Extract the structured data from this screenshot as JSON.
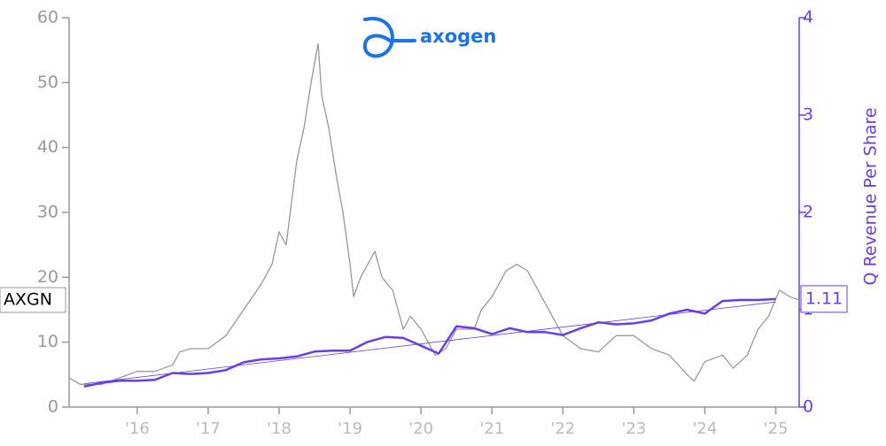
{
  "chart_data": {
    "type": "line",
    "logo_text": "axogen",
    "y2_label": "Q Revenue Per Share",
    "xlim": [
      2015.04,
      2025.33
    ],
    "xticks": [
      {
        "value": 2016,
        "label": "'16"
      },
      {
        "value": 2017,
        "label": "'17"
      },
      {
        "value": 2018,
        "label": "'18"
      },
      {
        "value": 2019,
        "label": "'19"
      },
      {
        "value": 2020,
        "label": "'20"
      },
      {
        "value": 2021,
        "label": "'21"
      },
      {
        "value": 2022,
        "label": "'22"
      },
      {
        "value": 2023,
        "label": "'23"
      },
      {
        "value": 2024,
        "label": "'24"
      },
      {
        "value": 2025,
        "label": "'25"
      }
    ],
    "ylim": [
      0,
      60
    ],
    "yticks": [
      0,
      10,
      20,
      30,
      40,
      50,
      60
    ],
    "y2lim": [
      0,
      4
    ],
    "y2ticks": [
      0,
      1,
      2,
      3,
      4
    ],
    "series": [
      {
        "name": "AXGN",
        "color": "#999999",
        "x": [
          2015.04,
          2015.2,
          2015.5,
          2015.75,
          2016.0,
          2016.25,
          2016.5,
          2016.6,
          2016.75,
          2017.0,
          2017.25,
          2017.5,
          2017.75,
          2017.9,
          2018.0,
          2018.1,
          2018.25,
          2018.35,
          2018.45,
          2018.55,
          2018.6,
          2018.7,
          2018.8,
          2018.9,
          2019.0,
          2019.05,
          2019.15,
          2019.35,
          2019.45,
          2019.6,
          2019.75,
          2019.85,
          2020.0,
          2020.2,
          2020.35,
          2020.5,
          2020.75,
          2020.85,
          2021.0,
          2021.2,
          2021.35,
          2021.5,
          2021.7,
          2021.85,
          2022.0,
          2022.25,
          2022.5,
          2022.75,
          2023.0,
          2023.25,
          2023.5,
          2023.75,
          2023.85,
          2024.0,
          2024.25,
          2024.4,
          2024.6,
          2024.75,
          2024.9,
          2025.05,
          2025.2,
          2025.33
        ],
        "values": [
          4.5,
          3.5,
          3.5,
          4.5,
          5.5,
          5.5,
          6.5,
          8.5,
          9,
          9,
          11,
          15,
          19,
          22,
          27,
          25,
          38,
          43,
          50,
          56,
          48,
          43,
          36,
          30,
          22,
          17,
          20,
          24,
          20,
          18,
          12,
          14,
          12,
          8,
          9,
          12,
          12,
          15,
          17,
          21,
          22,
          21,
          17,
          14,
          11,
          9,
          8.5,
          11,
          11,
          9,
          8,
          5,
          4,
          7,
          8,
          6,
          8,
          12,
          14,
          18,
          17,
          16.5
        ]
      },
      {
        "color": "#6a3de8",
        "axis": "y2",
        "x": [
          2015.25,
          2015.5,
          2015.75,
          2016.0,
          2016.25,
          2016.5,
          2016.75,
          2017.0,
          2017.25,
          2017.5,
          2017.75,
          2018.0,
          2018.25,
          2018.5,
          2018.75,
          2019.0,
          2019.25,
          2019.5,
          2019.75,
          2020.0,
          2020.25,
          2020.5,
          2020.75,
          2021.0,
          2021.25,
          2021.5,
          2021.75,
          2022.0,
          2022.25,
          2022.5,
          2022.75,
          2023.0,
          2023.25,
          2023.5,
          2023.75,
          2024.0,
          2024.25,
          2024.5,
          2024.75,
          2025.0
        ],
        "values": [
          0.21,
          0.25,
          0.27,
          0.27,
          0.28,
          0.35,
          0.34,
          0.35,
          0.38,
          0.46,
          0.49,
          0.5,
          0.52,
          0.57,
          0.58,
          0.58,
          0.67,
          0.72,
          0.71,
          0.63,
          0.55,
          0.83,
          0.81,
          0.75,
          0.81,
          0.77,
          0.77,
          0.74,
          0.81,
          0.87,
          0.85,
          0.86,
          0.89,
          0.96,
          1.0,
          0.96,
          1.09,
          1.1,
          1.1,
          1.11
        ]
      },
      {
        "color": "#6a3de8",
        "axis": "y2",
        "x": [
          2015.25,
          2025.0
        ],
        "values": [
          0.24,
          1.08
        ]
      }
    ]
  }
}
